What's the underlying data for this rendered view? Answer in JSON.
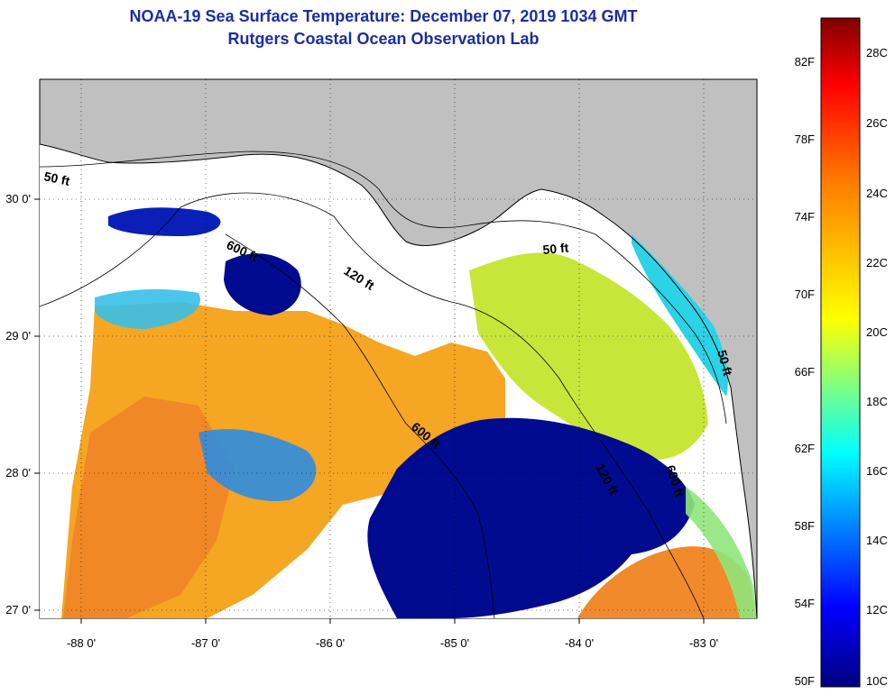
{
  "header": {
    "title": "NOAA-19 Sea Surface Temperature:  December 07, 2019 1034 GMT",
    "subtitle": "Rutgers Coastal Ocean Observation Lab"
  },
  "map": {
    "lon_ticks": [
      "-88 0'",
      "-87 0'",
      "-86 0'",
      "-85 0'",
      "-84 0'",
      "-83 0'"
    ],
    "lat_ticks": [
      "30 0'",
      "29 0'",
      "28 0'",
      "27 0'"
    ],
    "contour_labels": [
      "50 ft",
      "600 ft",
      "120 ft",
      "50 ft",
      "600 ft",
      "120 ft",
      "600 ft",
      "50 ft"
    ],
    "colors": {
      "land": "#c0c0c0",
      "clouds": "#ffffff",
      "coast": "#000000"
    }
  },
  "colorbar": {
    "fahrenheit": [
      "82F",
      "78F",
      "74F",
      "70F",
      "66F",
      "62F",
      "58F",
      "54F",
      "50F"
    ],
    "celsius": [
      "28C",
      "26C",
      "24C",
      "22C",
      "20C",
      "18C",
      "16C",
      "14C",
      "12C",
      "10C"
    ],
    "range_c": [
      10,
      29
    ],
    "colors": [
      "#00007f",
      "#0000ff",
      "#0080ff",
      "#00ffff",
      "#80ff80",
      "#ffff00",
      "#ff8000",
      "#ff0000",
      "#7f0000"
    ]
  }
}
